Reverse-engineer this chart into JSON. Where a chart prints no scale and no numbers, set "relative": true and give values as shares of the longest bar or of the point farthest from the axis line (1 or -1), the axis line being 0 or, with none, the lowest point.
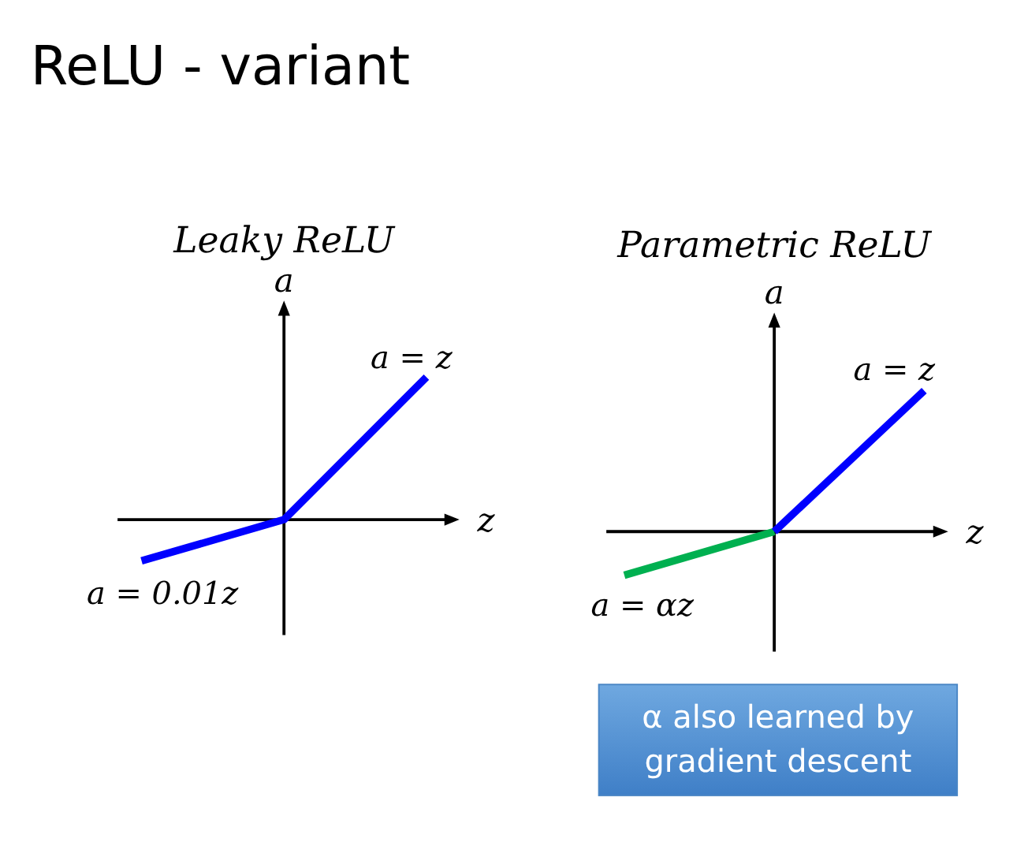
{
  "chart_data": [
    {
      "type": "line",
      "title": "ReLU - variant",
      "subtitle": "Leaky ReLU",
      "xlabel": "z",
      "ylabel": "a",
      "relative": true,
      "line_style": "solid",
      "categories": [
        null,
        null,
        null
      ],
      "series": [
        {
          "color": "#0000ff",
          "values": [
            -0.29,
            0,
            1
          ]
        }
      ],
      "annotations": [
        "a = z",
        "a = 0.01z"
      ]
    },
    {
      "type": "line",
      "title": "Parametric ReLU",
      "xlabel": "z",
      "ylabel": "a",
      "relative": true,
      "line_style": "solid",
      "categories": [
        null,
        null,
        null
      ],
      "series": [
        {
          "color": "#00b050",
          "values": [
            -0.31,
            0,
            null
          ]
        },
        {
          "color": "#0000ff",
          "values": [
            null,
            0,
            1
          ]
        }
      ],
      "annotations": [
        "a = z",
        "a = αz",
        "α also learned by gradient descent"
      ]
    }
  ]
}
